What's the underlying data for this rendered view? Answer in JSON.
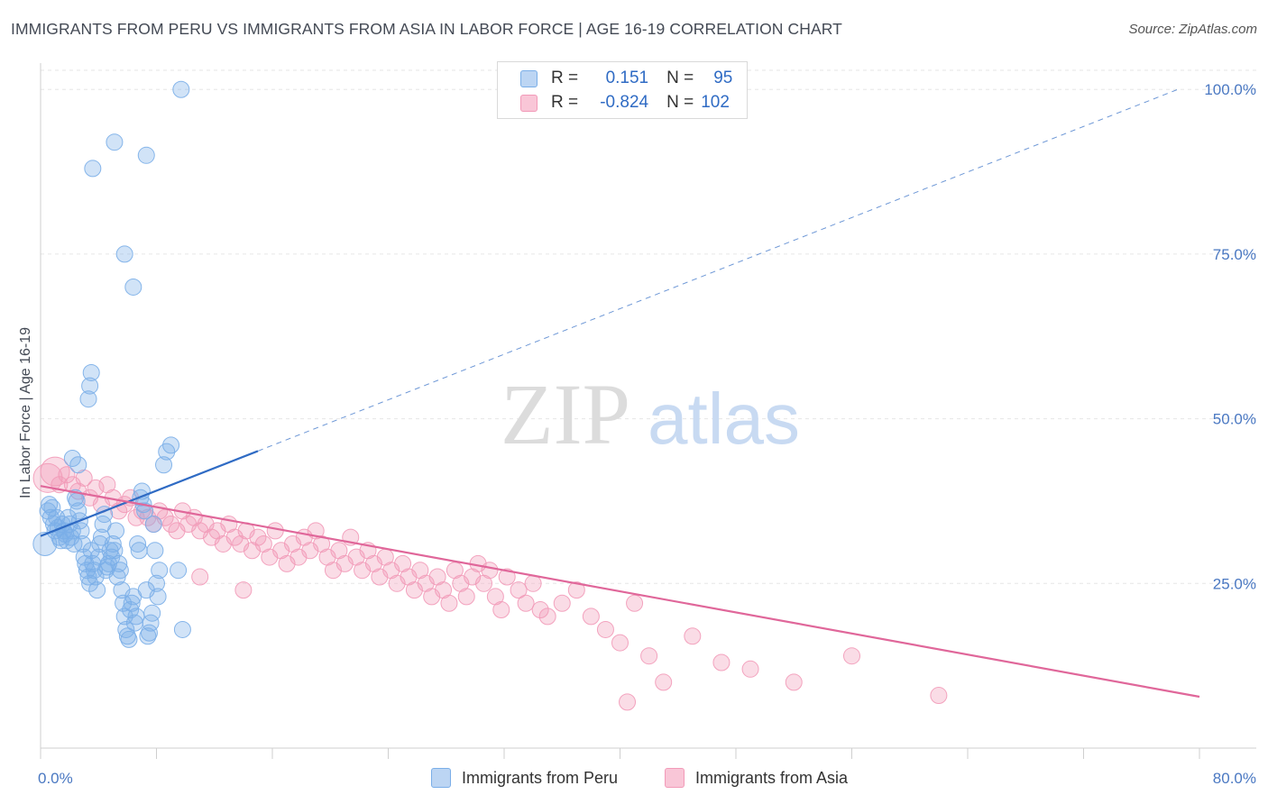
{
  "title": "IMMIGRANTS FROM PERU VS IMMIGRANTS FROM ASIA IN LABOR FORCE | AGE 16-19 CORRELATION CHART",
  "source": "Source: ZipAtlas.com",
  "watermark": {
    "zip": "ZIP",
    "atlas": "atlas"
  },
  "legend": {
    "peru": {
      "r_label": "R =",
      "r_value": "0.151",
      "n_label": "N =",
      "n_value": "95"
    },
    "asia": {
      "r_label": "R =",
      "r_value": "-0.824",
      "n_label": "N =",
      "n_value": "102"
    }
  },
  "chart_data": {
    "type": "scatter",
    "title": "IMMIGRANTS FROM PERU VS IMMIGRANTS FROM ASIA IN LABOR FORCE | AGE 16-19 CORRELATION CHART",
    "xlabel": "",
    "ylabel": "In Labor Force | Age 16-19",
    "xlim": [
      0,
      80
    ],
    "ylim": [
      0,
      104
    ],
    "x_tick_labels": [
      "0.0%",
      "80.0%"
    ],
    "y_ticks": [
      25,
      50,
      75,
      100
    ],
    "y_tick_labels": [
      "25.0%",
      "50.0%",
      "75.0%",
      "100.0%"
    ],
    "colors": {
      "peru": "#7aaee8",
      "peru_line": "#2f6bc4",
      "asia": "#f29ab8",
      "asia_line": "#e0679a"
    },
    "series": [
      {
        "name": "Immigrants from Peru",
        "r": 0.151,
        "n": 95,
        "trend": {
          "x": [
            0,
            15
          ],
          "y": [
            32.2,
            45.1
          ],
          "dashed_extension": {
            "x": [
              15,
              78.5
            ],
            "y": [
              45.1,
              100
            ]
          }
        },
        "points": [
          [
            0.3,
            31
          ],
          [
            0.5,
            36
          ],
          [
            0.6,
            37
          ],
          [
            0.7,
            35
          ],
          [
            0.8,
            36.5
          ],
          [
            0.9,
            34
          ],
          [
            1.0,
            33
          ],
          [
            1.1,
            35
          ],
          [
            1.2,
            33.5
          ],
          [
            1.3,
            32
          ],
          [
            1.4,
            31.5
          ],
          [
            1.5,
            34
          ],
          [
            1.6,
            33
          ],
          [
            1.7,
            32.5
          ],
          [
            1.8,
            31.5
          ],
          [
            1.9,
            35
          ],
          [
            2.0,
            34
          ],
          [
            2.1,
            32
          ],
          [
            2.2,
            33
          ],
          [
            2.3,
            31
          ],
          [
            2.4,
            38
          ],
          [
            2.5,
            37.5
          ],
          [
            2.6,
            36
          ],
          [
            2.7,
            34.5
          ],
          [
            2.8,
            33
          ],
          [
            2.9,
            31
          ],
          [
            3.0,
            29
          ],
          [
            3.1,
            28
          ],
          [
            3.2,
            27
          ],
          [
            3.3,
            26
          ],
          [
            3.4,
            25
          ],
          [
            3.5,
            30
          ],
          [
            3.6,
            28
          ],
          [
            3.7,
            27
          ],
          [
            3.8,
            26
          ],
          [
            3.9,
            24
          ],
          [
            4.0,
            29
          ],
          [
            4.1,
            31
          ],
          [
            4.2,
            32
          ],
          [
            4.3,
            34
          ],
          [
            4.4,
            35.5
          ],
          [
            4.5,
            27
          ],
          [
            4.6,
            27.5
          ],
          [
            4.7,
            28
          ],
          [
            4.8,
            30
          ],
          [
            4.9,
            29
          ],
          [
            5.0,
            31
          ],
          [
            5.1,
            30
          ],
          [
            5.2,
            33
          ],
          [
            5.3,
            26
          ],
          [
            5.4,
            28
          ],
          [
            5.5,
            27
          ],
          [
            5.6,
            24
          ],
          [
            5.7,
            22
          ],
          [
            5.8,
            20
          ],
          [
            5.9,
            18
          ],
          [
            6.0,
            17
          ],
          [
            6.1,
            16.5
          ],
          [
            6.2,
            21
          ],
          [
            6.3,
            22
          ],
          [
            6.4,
            23
          ],
          [
            6.5,
            19
          ],
          [
            6.6,
            20
          ],
          [
            6.7,
            31
          ],
          [
            6.8,
            30
          ],
          [
            6.9,
            38
          ],
          [
            7.0,
            39
          ],
          [
            7.1,
            37
          ],
          [
            7.2,
            36
          ],
          [
            7.3,
            24
          ],
          [
            7.4,
            17
          ],
          [
            7.5,
            17.5
          ],
          [
            7.6,
            19
          ],
          [
            7.7,
            20.5
          ],
          [
            7.8,
            34
          ],
          [
            7.9,
            30
          ],
          [
            8.0,
            25
          ],
          [
            8.1,
            23
          ],
          [
            8.2,
            27
          ],
          [
            8.5,
            43
          ],
          [
            8.7,
            45
          ],
          [
            9.0,
            46
          ],
          [
            9.5,
            27
          ],
          [
            9.8,
            18
          ],
          [
            2.2,
            44
          ],
          [
            2.6,
            43
          ],
          [
            3.3,
            53
          ],
          [
            3.5,
            57
          ],
          [
            3.4,
            55
          ],
          [
            3.6,
            88
          ],
          [
            5.1,
            92
          ],
          [
            5.8,
            75
          ],
          [
            6.4,
            70
          ],
          [
            7.3,
            90
          ],
          [
            9.7,
            100
          ]
        ]
      },
      {
        "name": "Immigrants from Asia",
        "r": -0.824,
        "n": 102,
        "trend": {
          "x": [
            0,
            80
          ],
          "y": [
            39.8,
            7.8
          ]
        },
        "points": [
          [
            0.5,
            41
          ],
          [
            1.0,
            42
          ],
          [
            1.3,
            40
          ],
          [
            1.8,
            41.5
          ],
          [
            2.2,
            40
          ],
          [
            2.6,
            39
          ],
          [
            3.0,
            41
          ],
          [
            3.4,
            38
          ],
          [
            3.8,
            39.5
          ],
          [
            4.2,
            37
          ],
          [
            4.6,
            40
          ],
          [
            5.0,
            38
          ],
          [
            5.4,
            36
          ],
          [
            5.8,
            37
          ],
          [
            6.2,
            38
          ],
          [
            6.6,
            35
          ],
          [
            7.0,
            36
          ],
          [
            7.4,
            35
          ],
          [
            7.8,
            34
          ],
          [
            8.2,
            36
          ],
          [
            8.6,
            35
          ],
          [
            9.0,
            34
          ],
          [
            9.4,
            33
          ],
          [
            9.8,
            36
          ],
          [
            10.2,
            34
          ],
          [
            10.6,
            35
          ],
          [
            11.0,
            33
          ],
          [
            11.4,
            34
          ],
          [
            11.8,
            32
          ],
          [
            12.2,
            33
          ],
          [
            12.6,
            31
          ],
          [
            13.0,
            34
          ],
          [
            13.4,
            32
          ],
          [
            13.8,
            31
          ],
          [
            14.2,
            33
          ],
          [
            14.6,
            30
          ],
          [
            15.0,
            32
          ],
          [
            15.4,
            31
          ],
          [
            15.8,
            29
          ],
          [
            16.2,
            33
          ],
          [
            16.6,
            30
          ],
          [
            17.0,
            28
          ],
          [
            17.4,
            31
          ],
          [
            17.8,
            29
          ],
          [
            18.2,
            32
          ],
          [
            18.6,
            30
          ],
          [
            19.0,
            33
          ],
          [
            19.4,
            31
          ],
          [
            19.8,
            29
          ],
          [
            20.2,
            27
          ],
          [
            20.6,
            30
          ],
          [
            21.0,
            28
          ],
          [
            21.4,
            32
          ],
          [
            21.8,
            29
          ],
          [
            22.2,
            27
          ],
          [
            22.6,
            30
          ],
          [
            23.0,
            28
          ],
          [
            23.4,
            26
          ],
          [
            23.8,
            29
          ],
          [
            24.2,
            27
          ],
          [
            24.6,
            25
          ],
          [
            25.0,
            28
          ],
          [
            25.4,
            26
          ],
          [
            25.8,
            24
          ],
          [
            26.2,
            27
          ],
          [
            26.6,
            25
          ],
          [
            27.0,
            23
          ],
          [
            27.4,
            26
          ],
          [
            27.8,
            24
          ],
          [
            28.2,
            22
          ],
          [
            28.6,
            27
          ],
          [
            29.0,
            25
          ],
          [
            29.4,
            23
          ],
          [
            29.8,
            26
          ],
          [
            30.2,
            28
          ],
          [
            30.6,
            25
          ],
          [
            31.0,
            27
          ],
          [
            31.4,
            23
          ],
          [
            31.8,
            21
          ],
          [
            32.2,
            26
          ],
          [
            33.0,
            24
          ],
          [
            33.5,
            22
          ],
          [
            34.0,
            25
          ],
          [
            34.5,
            21
          ],
          [
            35.0,
            20
          ],
          [
            36.0,
            22
          ],
          [
            37.0,
            24
          ],
          [
            38.0,
            20
          ],
          [
            39.0,
            18
          ],
          [
            40.0,
            16
          ],
          [
            41.0,
            22
          ],
          [
            42.0,
            14
          ],
          [
            43.0,
            10
          ],
          [
            45.0,
            17
          ],
          [
            47.0,
            13
          ],
          [
            49.0,
            12
          ],
          [
            52.0,
            10
          ],
          [
            56.0,
            14
          ],
          [
            62.0,
            8
          ],
          [
            40.5,
            7
          ],
          [
            14.0,
            24
          ],
          [
            11.0,
            26
          ]
        ]
      }
    ]
  },
  "bottom_legend": {
    "peru": "Immigrants from Peru",
    "asia": "Immigrants from Asia"
  }
}
